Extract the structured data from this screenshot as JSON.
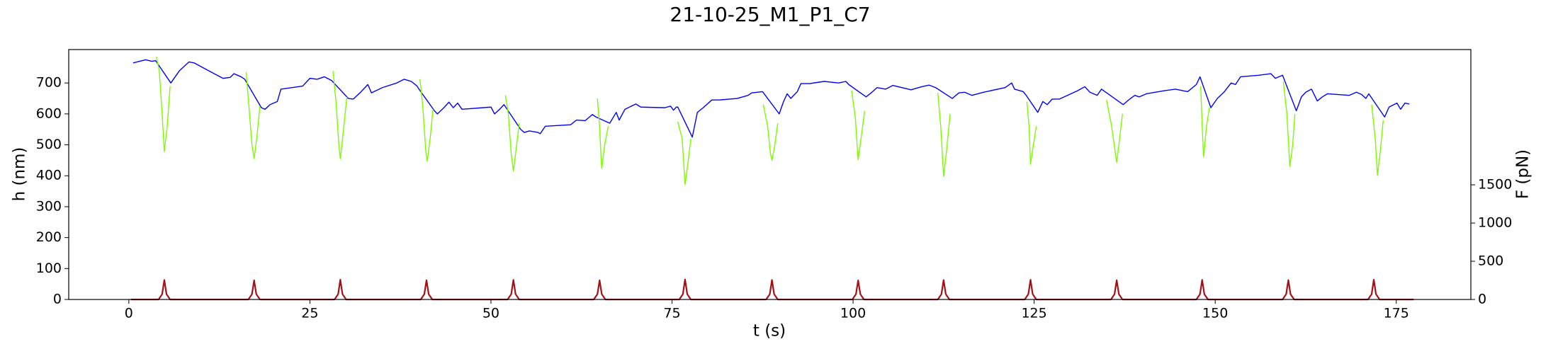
{
  "chart_data": {
    "type": "line",
    "title": "21-10-25_M1_P1_C7",
    "xlabel": "t (s)",
    "ylabel": "h (nm)",
    "y2label": "F (pN)",
    "ylabel_color": "blue",
    "y2label_color": "#b22222",
    "xlim": [
      -8.3,
      185.3
    ],
    "xticks": [
      0,
      25,
      50,
      75,
      100,
      125,
      150,
      175
    ],
    "ylim": [
      0,
      808
    ],
    "yticks": [
      0,
      100,
      200,
      300,
      400,
      500,
      600,
      700
    ],
    "y2lim": [
      0,
      3270
    ],
    "y2ticks": [
      0,
      500,
      1000,
      1500
    ],
    "series": [
      {
        "color": "blue",
        "x": [
          0.6,
          1.5,
          2.3,
          3.2,
          3.7,
          5.8,
          7,
          8.3,
          9,
          11,
          13,
          14,
          14.5,
          15.5,
          16,
          18.3,
          18.8,
          19.5,
          20.5,
          21,
          24,
          25,
          26,
          27,
          28,
          30.3,
          31,
          32,
          33,
          33.5,
          35,
          37,
          38,
          39,
          39.8,
          40,
          42.2,
          42.6,
          43.5,
          44.2,
          44.8,
          45.4,
          46,
          50,
          50.5,
          51.2,
          51.8,
          54.1,
          54.6,
          55.3,
          56.5,
          56.8,
          57.5,
          61,
          61.8,
          63,
          64,
          64.5,
          66.4,
          67.3,
          67.7,
          68.5,
          70,
          70.7,
          74,
          74.8,
          75.2,
          75.6,
          75.8,
          77.8,
          78.5,
          79.3,
          80.5,
          81.5,
          84,
          85.5,
          86,
          87.5,
          89.8,
          90.4,
          90.9,
          91.4,
          92.3,
          92.8,
          94,
          96,
          98,
          99,
          99.4,
          101.8,
          102.6,
          103.3,
          104.5,
          105.5,
          108,
          109.5,
          110.5,
          111.4,
          113.7,
          114.6,
          115.4,
          116.4,
          118,
          121,
          121.9,
          122.3,
          123.5,
          123.9,
          125.5,
          126.2,
          126.8,
          127.5,
          128.5,
          131,
          132,
          132.7,
          133.7,
          134.3,
          134.9,
          137.3,
          138.2,
          138.9,
          139.5,
          140.5,
          143,
          144.5,
          146.2,
          147.4,
          147.9,
          149.4,
          150.3,
          151.2,
          152.2,
          152.8,
          153.5,
          156,
          157.7,
          158.3,
          159.3,
          161.2,
          161.9,
          162.5,
          163.3,
          164.1,
          164.8,
          165.5,
          168.5,
          169.5,
          170.2,
          170.8,
          171.2,
          171.5,
          173.4,
          174,
          174.5,
          175.1,
          175.6,
          176.2,
          176.8
        ],
        "values": [
          765,
          770,
          775,
          770,
          772,
          700,
          740,
          768,
          765,
          740,
          715,
          718,
          730,
          720,
          712,
          620,
          615,
          630,
          640,
          680,
          690,
          715,
          712,
          720,
          708,
          650,
          648,
          670,
          695,
          668,
          685,
          700,
          712,
          705,
          690,
          682,
          610,
          600,
          620,
          638,
          620,
          635,
          615,
          622,
          600,
          615,
          630,
          550,
          540,
          545,
          540,
          536,
          560,
          565,
          580,
          578,
          598,
          590,
          570,
          605,
          580,
          615,
          632,
          622,
          620,
          625,
          612,
          622,
          622,
          525,
          605,
          620,
          645,
          645,
          650,
          660,
          668,
          672,
          600,
          640,
          665,
          650,
          672,
          698,
          698,
          705,
          700,
          705,
          695,
          655,
          670,
          685,
          680,
          692,
          678,
          688,
          693,
          685,
          650,
          668,
          670,
          660,
          670,
          685,
          700,
          680,
          672,
          660,
          605,
          640,
          630,
          648,
          648,
          675,
          688,
          670,
          660,
          680,
          670,
          630,
          648,
          660,
          655,
          665,
          675,
          680,
          672,
          695,
          720,
          620,
          650,
          670,
          700,
          695,
          720,
          725,
          730,
          715,
          725,
          610,
          655,
          670,
          680,
          642,
          655,
          665,
          660,
          670,
          663,
          650,
          665,
          655,
          590,
          622,
          628,
          635,
          615,
          635,
          632
        ]
      },
      {
        "color": "#7cfc00",
        "x": [
          3.8,
          4.2,
          4.6,
          4.9,
          5.3,
          5.7
        ],
        "values": [
          785,
          740,
          600,
          478,
          560,
          690
        ]
      },
      {
        "color": "#7cfc00",
        "x": [
          16.2,
          16.6,
          17.0,
          17.3,
          17.7,
          18.1
        ],
        "values": [
          735,
          620,
          500,
          455,
          530,
          625
        ]
      },
      {
        "color": "#7cfc00",
        "x": [
          28.2,
          28.6,
          29,
          29.2,
          29.6,
          30.1
        ],
        "values": [
          738,
          640,
          500,
          455,
          540,
          655
        ]
      },
      {
        "color": "#7cfc00",
        "x": [
          40.2,
          40.6,
          41.0,
          41.2,
          41.6,
          42.0
        ],
        "values": [
          712,
          620,
          480,
          447,
          520,
          615
        ]
      },
      {
        "color": "#7cfc00",
        "x": [
          52,
          52.4,
          52.8,
          53.1,
          53.5,
          53.9
        ],
        "values": [
          660,
          600,
          470,
          415,
          490,
          570
        ]
      },
      {
        "color": "#7cfc00",
        "x": [
          64.7,
          65.0,
          65.2,
          65.3,
          65.7,
          66.2
        ],
        "values": [
          650,
          560,
          460,
          423,
          500,
          560
        ]
      },
      {
        "color": "#7cfc00",
        "x": [
          75.8,
          76.4,
          76.8,
          77.2,
          77.6
        ],
        "values": [
          575,
          520,
          372,
          440,
          520
        ]
      },
      {
        "color": "#7cfc00",
        "x": [
          87.6,
          88.2,
          88.6,
          88.8,
          89.2,
          89.6
        ],
        "values": [
          630,
          560,
          470,
          450,
          500,
          570
        ]
      },
      {
        "color": "#7cfc00",
        "x": [
          99.8,
          100.3,
          100.7,
          101.1,
          101.6
        ],
        "values": [
          675,
          590,
          452,
          520,
          610
        ]
      },
      {
        "color": "#7cfc00",
        "x": [
          111.7,
          112.1,
          112.5,
          112.9,
          113.4
        ],
        "values": [
          668,
          560,
          398,
          480,
          600
        ]
      },
      {
        "color": "#7cfc00",
        "x": [
          124,
          124.3,
          124.5,
          124.9,
          125.3
        ],
        "values": [
          640,
          560,
          437,
          500,
          560
        ]
      },
      {
        "color": "#7cfc00",
        "x": [
          135,
          135.7,
          136.4,
          136.8,
          137.2
        ],
        "values": [
          645,
          560,
          443,
          520,
          600
        ]
      },
      {
        "color": "#7cfc00",
        "x": [
          148,
          148.2,
          148.4,
          148.8,
          149.2
        ],
        "values": [
          690,
          560,
          462,
          560,
          620
        ]
      },
      {
        "color": "#7cfc00",
        "x": [
          159.4,
          159.9,
          160.3,
          160.7,
          161
        ],
        "values": [
          705,
          600,
          430,
          500,
          600
        ]
      },
      {
        "color": "#7cfc00",
        "x": [
          171.6,
          172.1,
          172.4,
          172.8,
          173.2
        ],
        "values": [
          630,
          520,
          402,
          480,
          580
        ]
      },
      {
        "color": "#a50f15",
        "axis": "y2",
        "x": [
          0.3,
          4.1,
          4.6,
          4.9,
          5.2,
          5.7,
          16.5,
          17.0,
          17.3,
          17.6,
          18.1,
          28.4,
          28.9,
          29.2,
          29.5,
          30.0,
          40.3,
          40.8,
          41.1,
          41.4,
          41.9,
          52.3,
          52.8,
          53.1,
          53.4,
          53.9,
          64.2,
          64.7,
          65.0,
          65.3,
          65.8,
          76.0,
          76.5,
          76.8,
          77.1,
          77.6,
          88.0,
          88.5,
          88.8,
          89.1,
          89.6,
          99.9,
          100.4,
          100.7,
          101.0,
          101.5,
          111.7,
          112.2,
          112.5,
          112.8,
          113.3,
          123.7,
          124.2,
          124.5,
          124.8,
          125.3,
          135.6,
          136.1,
          136.4,
          136.7,
          137.2,
          147.4,
          147.9,
          148.2,
          148.5,
          149.0,
          159.3,
          159.8,
          160.1,
          160.4,
          160.9,
          171.1,
          171.6,
          171.9,
          172.2,
          172.7,
          177.4
        ],
        "values": [
          0,
          0,
          70,
          255,
          70,
          0,
          0,
          70,
          250,
          70,
          0,
          0,
          70,
          258,
          70,
          0,
          0,
          70,
          252,
          70,
          0,
          0,
          70,
          256,
          70,
          0,
          0,
          70,
          250,
          70,
          0,
          0,
          70,
          262,
          70,
          0,
          0,
          70,
          255,
          70,
          0,
          0,
          70,
          250,
          70,
          0,
          0,
          70,
          254,
          70,
          0,
          0,
          70,
          257,
          70,
          0,
          0,
          70,
          252,
          70,
          0,
          0,
          70,
          256,
          70,
          0,
          0,
          70,
          254,
          70,
          0,
          0,
          70,
          258,
          70,
          0,
          0
        ]
      }
    ]
  }
}
